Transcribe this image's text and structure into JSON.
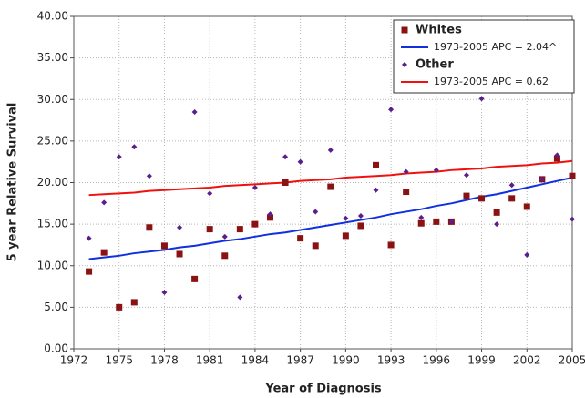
{
  "chart_data": {
    "type": "scatter",
    "x_label": "Year of Diagnosis",
    "y_label": "5 year Relative Survival",
    "x": [
      1973,
      1974,
      1975,
      1976,
      1977,
      1978,
      1979,
      1980,
      1981,
      1982,
      1983,
      1984,
      1985,
      1986,
      1987,
      1988,
      1989,
      1990,
      1991,
      1992,
      1993,
      1994,
      1995,
      1996,
      1997,
      1998,
      1999,
      2000,
      2001,
      2002,
      2003,
      2004,
      2005
    ],
    "series": [
      {
        "name": "Whites",
        "kind": "scatter",
        "marker": "square",
        "color": "#8b1212",
        "values": [
          9.3,
          11.6,
          5.0,
          5.6,
          14.6,
          12.4,
          11.4,
          8.4,
          14.4,
          11.2,
          14.4,
          15.0,
          15.8,
          20.0,
          13.3,
          12.4,
          19.5,
          13.6,
          14.8,
          22.1,
          12.5,
          18.9,
          15.1,
          15.3,
          15.3,
          18.4,
          18.1,
          16.4,
          18.1,
          17.1,
          20.4,
          22.9,
          20.8
        ]
      },
      {
        "name": "1973-2005 APC  = 2.04^",
        "kind": "line",
        "color": "#1030e0",
        "values": [
          10.8,
          11.0,
          11.2,
          11.5,
          11.7,
          11.9,
          12.2,
          12.4,
          12.7,
          13.0,
          13.2,
          13.5,
          13.8,
          14.0,
          14.3,
          14.6,
          14.9,
          15.2,
          15.5,
          15.8,
          16.2,
          16.5,
          16.8,
          17.2,
          17.5,
          17.9,
          18.3,
          18.6,
          19.0,
          19.4,
          19.8,
          20.2,
          20.6
        ]
      },
      {
        "name": "Other",
        "kind": "scatter",
        "marker": "diamond",
        "color": "#5a1f8c",
        "values": [
          13.3,
          17.6,
          23.1,
          24.3,
          20.8,
          6.8,
          14.6,
          28.5,
          18.7,
          13.5,
          6.2,
          19.4,
          16.2,
          23.1,
          22.5,
          16.5,
          23.9,
          15.7,
          16.0,
          19.1,
          28.8,
          21.3,
          15.8,
          21.5,
          15.3,
          20.9,
          30.1,
          15.0,
          19.7,
          11.3,
          20.4,
          23.3,
          15.6
        ]
      },
      {
        "name": "1973-2005 APC  = 0.62",
        "kind": "line",
        "color": "#f01010",
        "values": [
          18.5,
          18.6,
          18.7,
          18.8,
          19.0,
          19.1,
          19.2,
          19.3,
          19.4,
          19.6,
          19.7,
          19.8,
          19.9,
          20.0,
          20.2,
          20.3,
          20.4,
          20.6,
          20.7,
          20.8,
          20.9,
          21.1,
          21.2,
          21.3,
          21.5,
          21.6,
          21.7,
          21.9,
          22.0,
          22.1,
          22.3,
          22.4,
          22.6
        ]
      }
    ],
    "xlim": [
      1972,
      2005
    ],
    "xticks": [
      1972,
      1975,
      1978,
      1981,
      1984,
      1987,
      1990,
      1993,
      1996,
      1999,
      2002,
      2005
    ],
    "ylim": [
      0,
      40
    ],
    "yticks": [
      {
        "value": 0,
        "label": "0.00"
      },
      {
        "value": 5,
        "label": "5.00"
      },
      {
        "value": 10,
        "label": "10.00"
      },
      {
        "value": 15,
        "label": "15.00"
      },
      {
        "value": 20,
        "label": "20.00"
      },
      {
        "value": 25,
        "label": "25.00"
      },
      {
        "value": 30,
        "label": "30.00"
      },
      {
        "value": 35,
        "label": "35.00"
      },
      {
        "value": 40,
        "label": "40.00"
      }
    ],
    "grid": true,
    "legend": "top-right"
  }
}
